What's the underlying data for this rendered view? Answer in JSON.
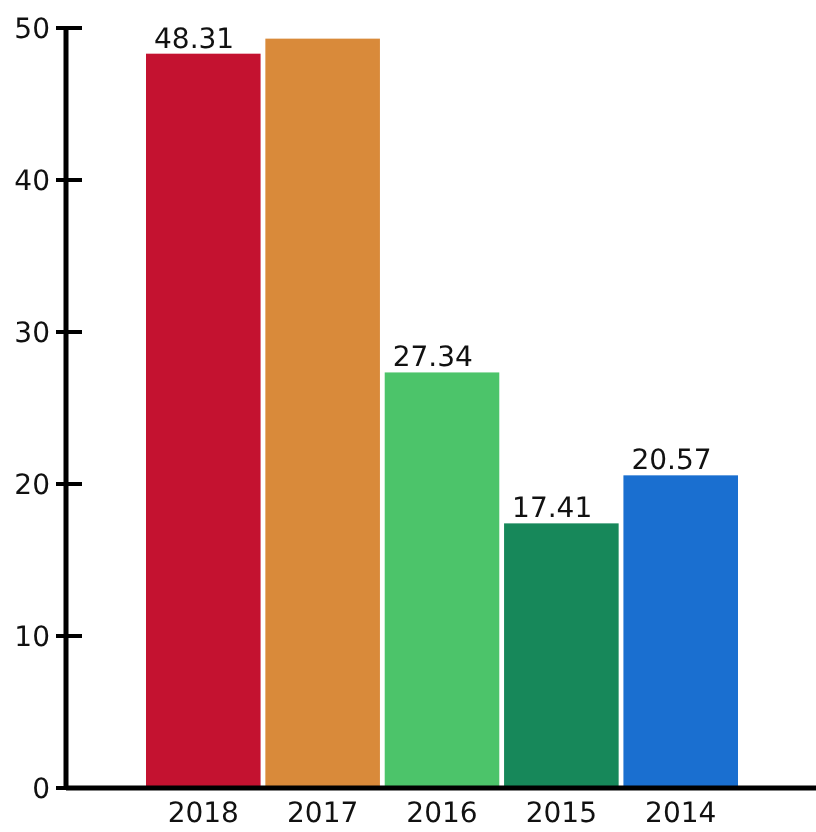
{
  "chart_data": {
    "type": "bar",
    "categories": [
      "2018",
      "2017",
      "2016",
      "2015",
      "2014"
    ],
    "values": [
      48.31,
      49.3,
      27.34,
      17.41,
      20.57
    ],
    "colors": [
      "#c41230",
      "#d98a3a",
      "#4cc46a",
      "#17885a",
      "#1a6fd0"
    ],
    "value_labels": [
      "48.31",
      null,
      "27.34",
      "17.41",
      "20.57"
    ],
    "ylim": [
      0,
      50
    ],
    "yticks": [
      0,
      10,
      20,
      30,
      40,
      50
    ],
    "grid": false
  }
}
